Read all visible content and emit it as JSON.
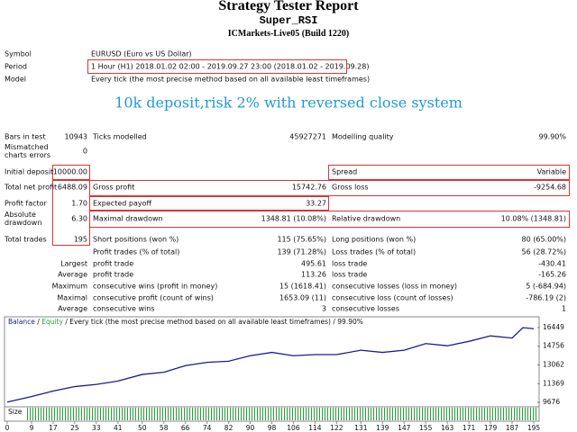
{
  "header": {
    "title": "Strategy Tester Report",
    "subtitle": "Super_RSI",
    "server": "ICMarkets-Live05 (Build 1220)"
  },
  "info": [
    {
      "label": "Symbol",
      "value": "EURUSD (Euro vs US Dollar)"
    },
    {
      "label": "Period",
      "value": "1 Hour (H1) 2018.01.02 02:00 - 2019.09.27 23:00 (2018.01.02 - 2019.09.28)"
    },
    {
      "label": "Model",
      "value": "Every tick (the most precise method based on all available least timeframes)"
    }
  ],
  "headline": "10k deposit,risk 2% with reversed close system",
  "stats": [
    [
      "Bars in test",
      "10943",
      "Ticks modelled",
      "45927271",
      "Modelling quality",
      "99.90%"
    ],
    [
      "Mismatched charts errors",
      "0"
    ],
    [
      "Initial deposit",
      "10000.00",
      "Spread",
      "Variable"
    ],
    [
      "Total net profit",
      "6488.09",
      "Gross profit",
      "15742.76",
      "Gross loss",
      "-9254.68"
    ],
    [
      "Profit factor",
      "1.70",
      "Expected payoff",
      "33.27"
    ],
    [
      "Absolute drawdown",
      "6.30",
      "Maximal drawdown",
      "1348.81 (10.08%)",
      "Relative drawdown",
      "10.08% (1348.81)"
    ],
    [
      "Total trades",
      "195",
      "Short positions (won %)",
      "115 (75.65%)",
      "Long positions (won %)",
      "80 (65.00%)"
    ],
    [
      "Profit trades (% of total)",
      "139 (71.28%)",
      "Loss trades (% of total)",
      "56 (28.72%)"
    ],
    [
      "Largest",
      "profit trade",
      "495.61",
      "loss trade",
      "-430.41"
    ],
    [
      "Average",
      "profit trade",
      "113.26",
      "loss trade",
      "-165.26"
    ],
    [
      "Maximum",
      "consecutive wins (profit in money)",
      "15 (1618.41)",
      "consecutive losses (loss in money)",
      "5 (-684.94)"
    ],
    [
      "Maximal",
      "consecutive profit (count of wins)",
      "1653.09 (11)",
      "consecutive loss (count of losses)",
      "-786.19 (2)"
    ],
    [
      "Average",
      "consecutive wins",
      "3",
      "consecutive losses",
      "1"
    ]
  ],
  "chart_data": {
    "type": "line",
    "legend": [
      "Balance",
      "Equity",
      "Every tick (the most precise method based on all available least timeframes)",
      "99.90%"
    ],
    "size_label": "Size",
    "x": [
      0,
      9,
      17,
      25,
      33,
      41,
      50,
      58,
      66,
      74,
      82,
      90,
      98,
      106,
      114,
      122,
      131,
      139,
      147,
      155,
      163,
      171,
      179,
      187,
      191,
      195
    ],
    "series": [
      {
        "color": "#1c1c8c",
        "values": [
          9700,
          10200,
          10700,
          11100,
          11300,
          11600,
          12200,
          12400,
          13000,
          13300,
          13400,
          13900,
          14200,
          13900,
          14000,
          14000,
          14400,
          14200,
          14400,
          15000,
          14800,
          15200,
          15700,
          15500,
          16449,
          16350
        ]
      }
    ],
    "xlim": [
      0,
      195
    ],
    "xticks": [
      0,
      9,
      17,
      25,
      33,
      41,
      50,
      58,
      66,
      74,
      82,
      90,
      98,
      106,
      114,
      122,
      131,
      139,
      147,
      155,
      163,
      171,
      179,
      187,
      195
    ],
    "ylim": [
      9676,
      16449
    ],
    "yticks": [
      9676,
      11369,
      13062,
      14756,
      16449
    ]
  }
}
